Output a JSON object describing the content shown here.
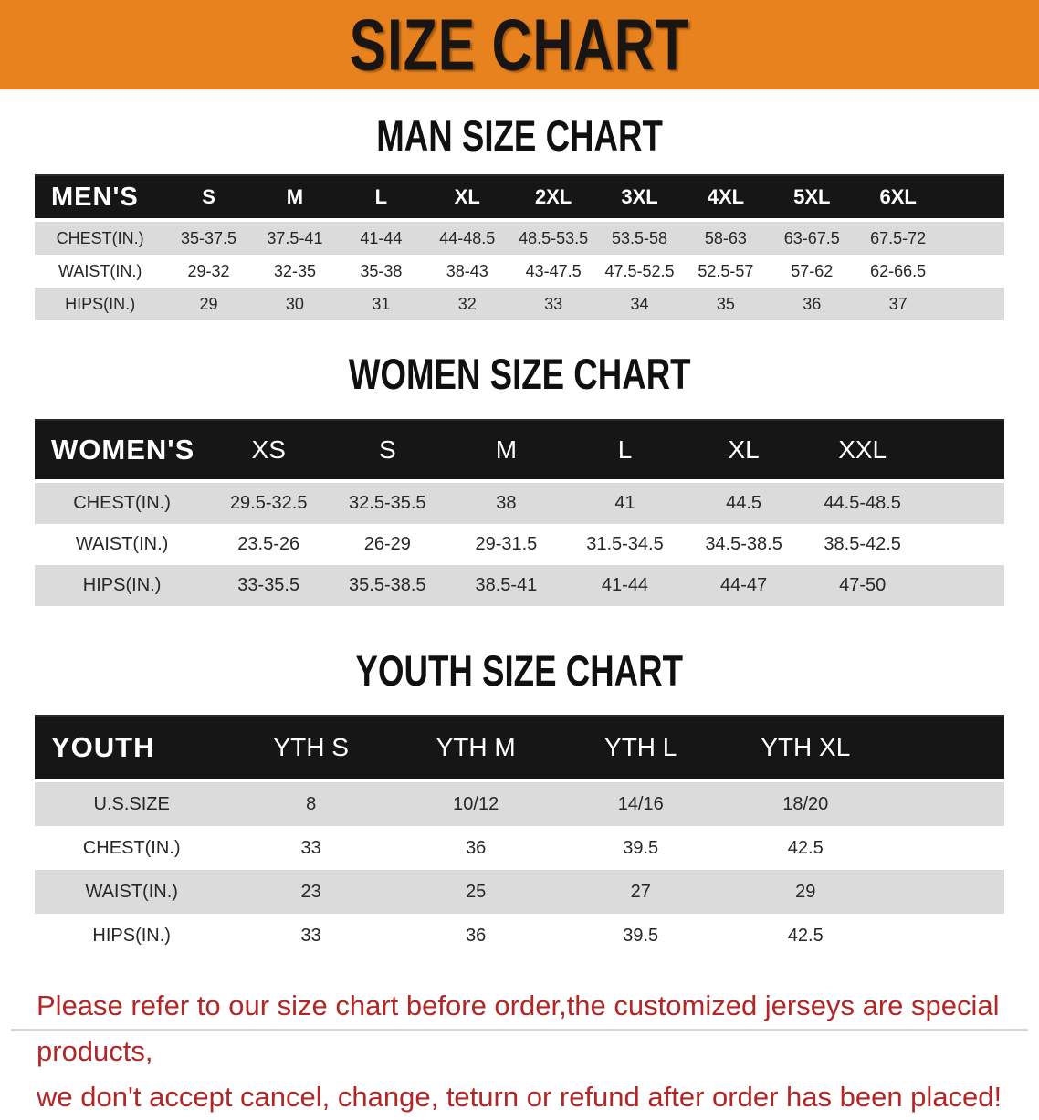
{
  "banner": {
    "title": "SIZE CHART"
  },
  "sections": [
    {
      "heading": "MAN SIZE CHART",
      "header_label": "MEN'S",
      "columns": [
        "S",
        "M",
        "L",
        "XL",
        "2XL",
        "3XL",
        "4XL",
        "5XL",
        "6XL"
      ],
      "rows": [
        {
          "label": "CHEST(IN.)",
          "values": [
            "35-37.5",
            "37.5-41",
            "41-44",
            "44-48.5",
            "48.5-53.5",
            "53.5-58",
            "58-63",
            "63-67.5",
            "67.5-72"
          ]
        },
        {
          "label": "WAIST(IN.)",
          "values": [
            "29-32",
            "32-35",
            "35-38",
            "38-43",
            "43-47.5",
            "47.5-52.5",
            "52.5-57",
            "57-62",
            "62-66.5"
          ]
        },
        {
          "label": "HIPS(IN.)",
          "values": [
            "29",
            "30",
            "31",
            "32",
            "33",
            "34",
            "35",
            "36",
            "37"
          ]
        }
      ]
    },
    {
      "heading": "WOMEN SIZE CHART",
      "header_label": "WOMEN'S",
      "columns": [
        "XS",
        "S",
        "M",
        "L",
        "XL",
        "XXL"
      ],
      "rows": [
        {
          "label": "CHEST(IN.)",
          "values": [
            "29.5-32.5",
            "32.5-35.5",
            "38",
            "41",
            "44.5",
            "44.5-48.5"
          ]
        },
        {
          "label": "WAIST(IN.)",
          "values": [
            "23.5-26",
            "26-29",
            "29-31.5",
            "31.5-34.5",
            "34.5-38.5",
            "38.5-42.5"
          ]
        },
        {
          "label": "HIPS(IN.)",
          "values": [
            "33-35.5",
            "35.5-38.5",
            "38.5-41",
            "41-44",
            "44-47",
            "47-50"
          ]
        }
      ]
    },
    {
      "heading": "YOUTH SIZE CHART",
      "header_label": "YOUTH",
      "columns": [
        "YTH S",
        "YTH M",
        "YTH L",
        "YTH XL"
      ],
      "rows": [
        {
          "label": "U.S.SIZE",
          "values": [
            "8",
            "10/12",
            "14/16",
            "18/20"
          ]
        },
        {
          "label": "CHEST(IN.)",
          "values": [
            "33",
            "36",
            "39.5",
            "42.5"
          ]
        },
        {
          "label": "WAIST(IN.)",
          "values": [
            "23",
            "25",
            "27",
            "29"
          ]
        },
        {
          "label": "HIPS(IN.)",
          "values": [
            "33",
            "36",
            "39.5",
            "42.5"
          ]
        }
      ]
    }
  ],
  "disclaimer": {
    "line1": "Please refer to our size chart before order,the customized jerseys are special products,",
    "line2": "we don't accept cancel, change, teturn or refund after order has been placed!"
  },
  "colors": {
    "banner_orange": "#E8821E",
    "header_bar_black": "#161616",
    "row_gray": "#DBDBDB",
    "body_text": "#26262b",
    "disclaimer_red": "#B32626"
  }
}
